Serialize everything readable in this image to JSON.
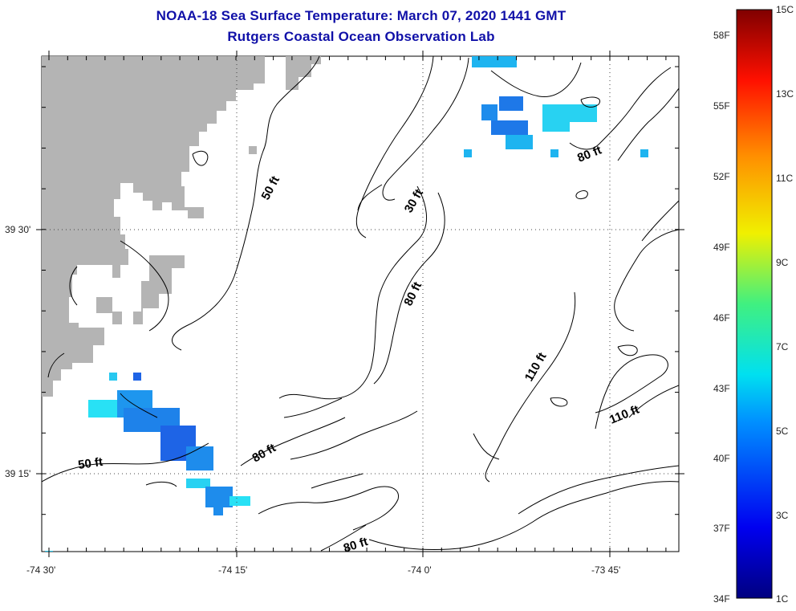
{
  "header": {
    "title_line1": "NOAA-18 Sea Surface Temperature:  March 07, 2020 1441 GMT",
    "title_line2": "Rutgers Coastal Ocean Observation Lab"
  },
  "axes": {
    "x_ticks": [
      "-74 30'",
      "-74 15'",
      "-74 0'",
      "-73 45'"
    ],
    "y_ticks": [
      "39 30'",
      "39 15'"
    ]
  },
  "contours": {
    "labels": [
      "50 ft",
      "30 ft",
      "80 ft",
      "80 ft",
      "110 ft",
      "110 ft",
      "50 ft",
      "80 ft",
      "80 ft"
    ]
  },
  "colorbar": {
    "fahrenheit_labels": [
      "58F",
      "55F",
      "52F",
      "49F",
      "46F",
      "43F",
      "40F",
      "37F",
      "34F"
    ],
    "celsius_labels": [
      "15C",
      "13C",
      "11C",
      "9C",
      "7C",
      "5C",
      "3C",
      "1C"
    ]
  },
  "colors": {
    "title": "#1010a8",
    "land": "#b4b4b4",
    "sst_cold": "#1e64e6",
    "sst_mid": "#1eb4f0",
    "sst_cyan": "#28e1f5"
  }
}
